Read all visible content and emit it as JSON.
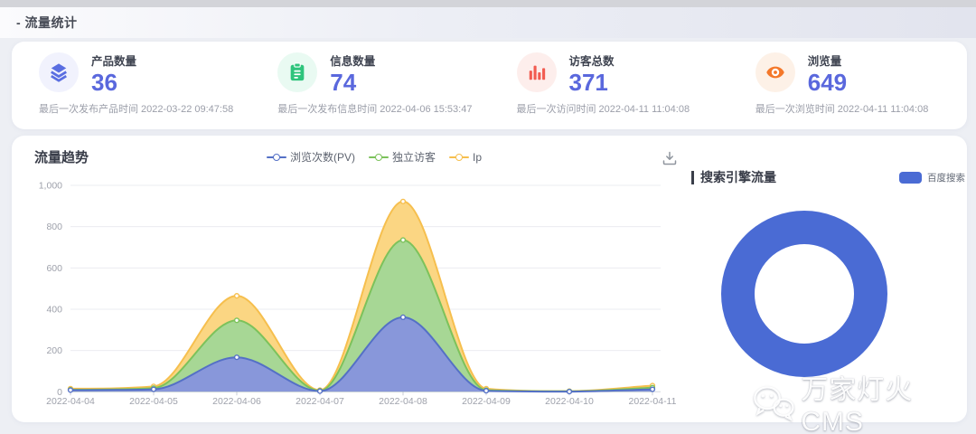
{
  "page": {
    "title": "- 流量统计"
  },
  "stats": {
    "value_color": "#5a68dd",
    "items": [
      {
        "icon": "layers-icon",
        "label": "产品数量",
        "value": "36",
        "meta": "最后一次发布产品时间 2022-03-22 09:47:58",
        "color": "#5a6ee1",
        "icon_bg": "#f1f2fd"
      },
      {
        "icon": "clipboard-icon",
        "label": "信息数量",
        "value": "74",
        "meta": "最后一次发布信息时间 2022-04-06 15:53:47",
        "color": "#2ec47c",
        "icon_bg": "#e9faf2"
      },
      {
        "icon": "bar-chart-icon",
        "label": "访客总数",
        "value": "371",
        "meta": "最后一次访问时间 2022-04-11 11:04:08",
        "color": "#f25b50",
        "icon_bg": "#fdeeec"
      },
      {
        "icon": "eye-icon",
        "label": "浏览量",
        "value": "649",
        "meta": "最后一次浏览时间 2022-04-11 11:04:08",
        "color": "#f4782a",
        "icon_bg": "#fdf1e7"
      }
    ]
  },
  "trend": {
    "title": "流量趋势"
  },
  "search": {
    "title": "搜索引擎流量",
    "legend_label": "百度搜索",
    "color": "#4a6bd4"
  },
  "watermark": {
    "text": "万家灯火CMS"
  },
  "chart_data": [
    {
      "type": "area",
      "title": "流量趋势",
      "x": [
        "2022-04-04",
        "2022-04-05",
        "2022-04-06",
        "2022-04-07",
        "2022-04-08",
        "2022-04-09",
        "2022-04-10",
        "2022-04-11"
      ],
      "series": [
        {
          "name": "浏览次数(PV)",
          "stroke": "#5470c6",
          "fill": "#8897da",
          "values": [
            8,
            12,
            167,
            3,
            361,
            5,
            1,
            12
          ]
        },
        {
          "name": "独立访客",
          "stroke": "#7cc25b",
          "fill": "#a7d795",
          "values": [
            10,
            18,
            346,
            5,
            735,
            8,
            2,
            20
          ]
        },
        {
          "name": "Ip",
          "stroke": "#f6bf4e",
          "fill": "#fbd683",
          "values": [
            15,
            26,
            465,
            8,
            922,
            15,
            3,
            30
          ]
        }
      ],
      "ylim": [
        0,
        1000
      ],
      "yticks": [
        0,
        200,
        400,
        600,
        800,
        1000
      ],
      "smooth": true,
      "grid": true,
      "legend_position": "top-center"
    },
    {
      "type": "pie",
      "title": "搜索引擎流量",
      "labels": [
        "百度搜索"
      ],
      "values": [
        100
      ],
      "colors": [
        "#4a6bd4"
      ],
      "donut": true,
      "legend_position": "top-right"
    }
  ]
}
